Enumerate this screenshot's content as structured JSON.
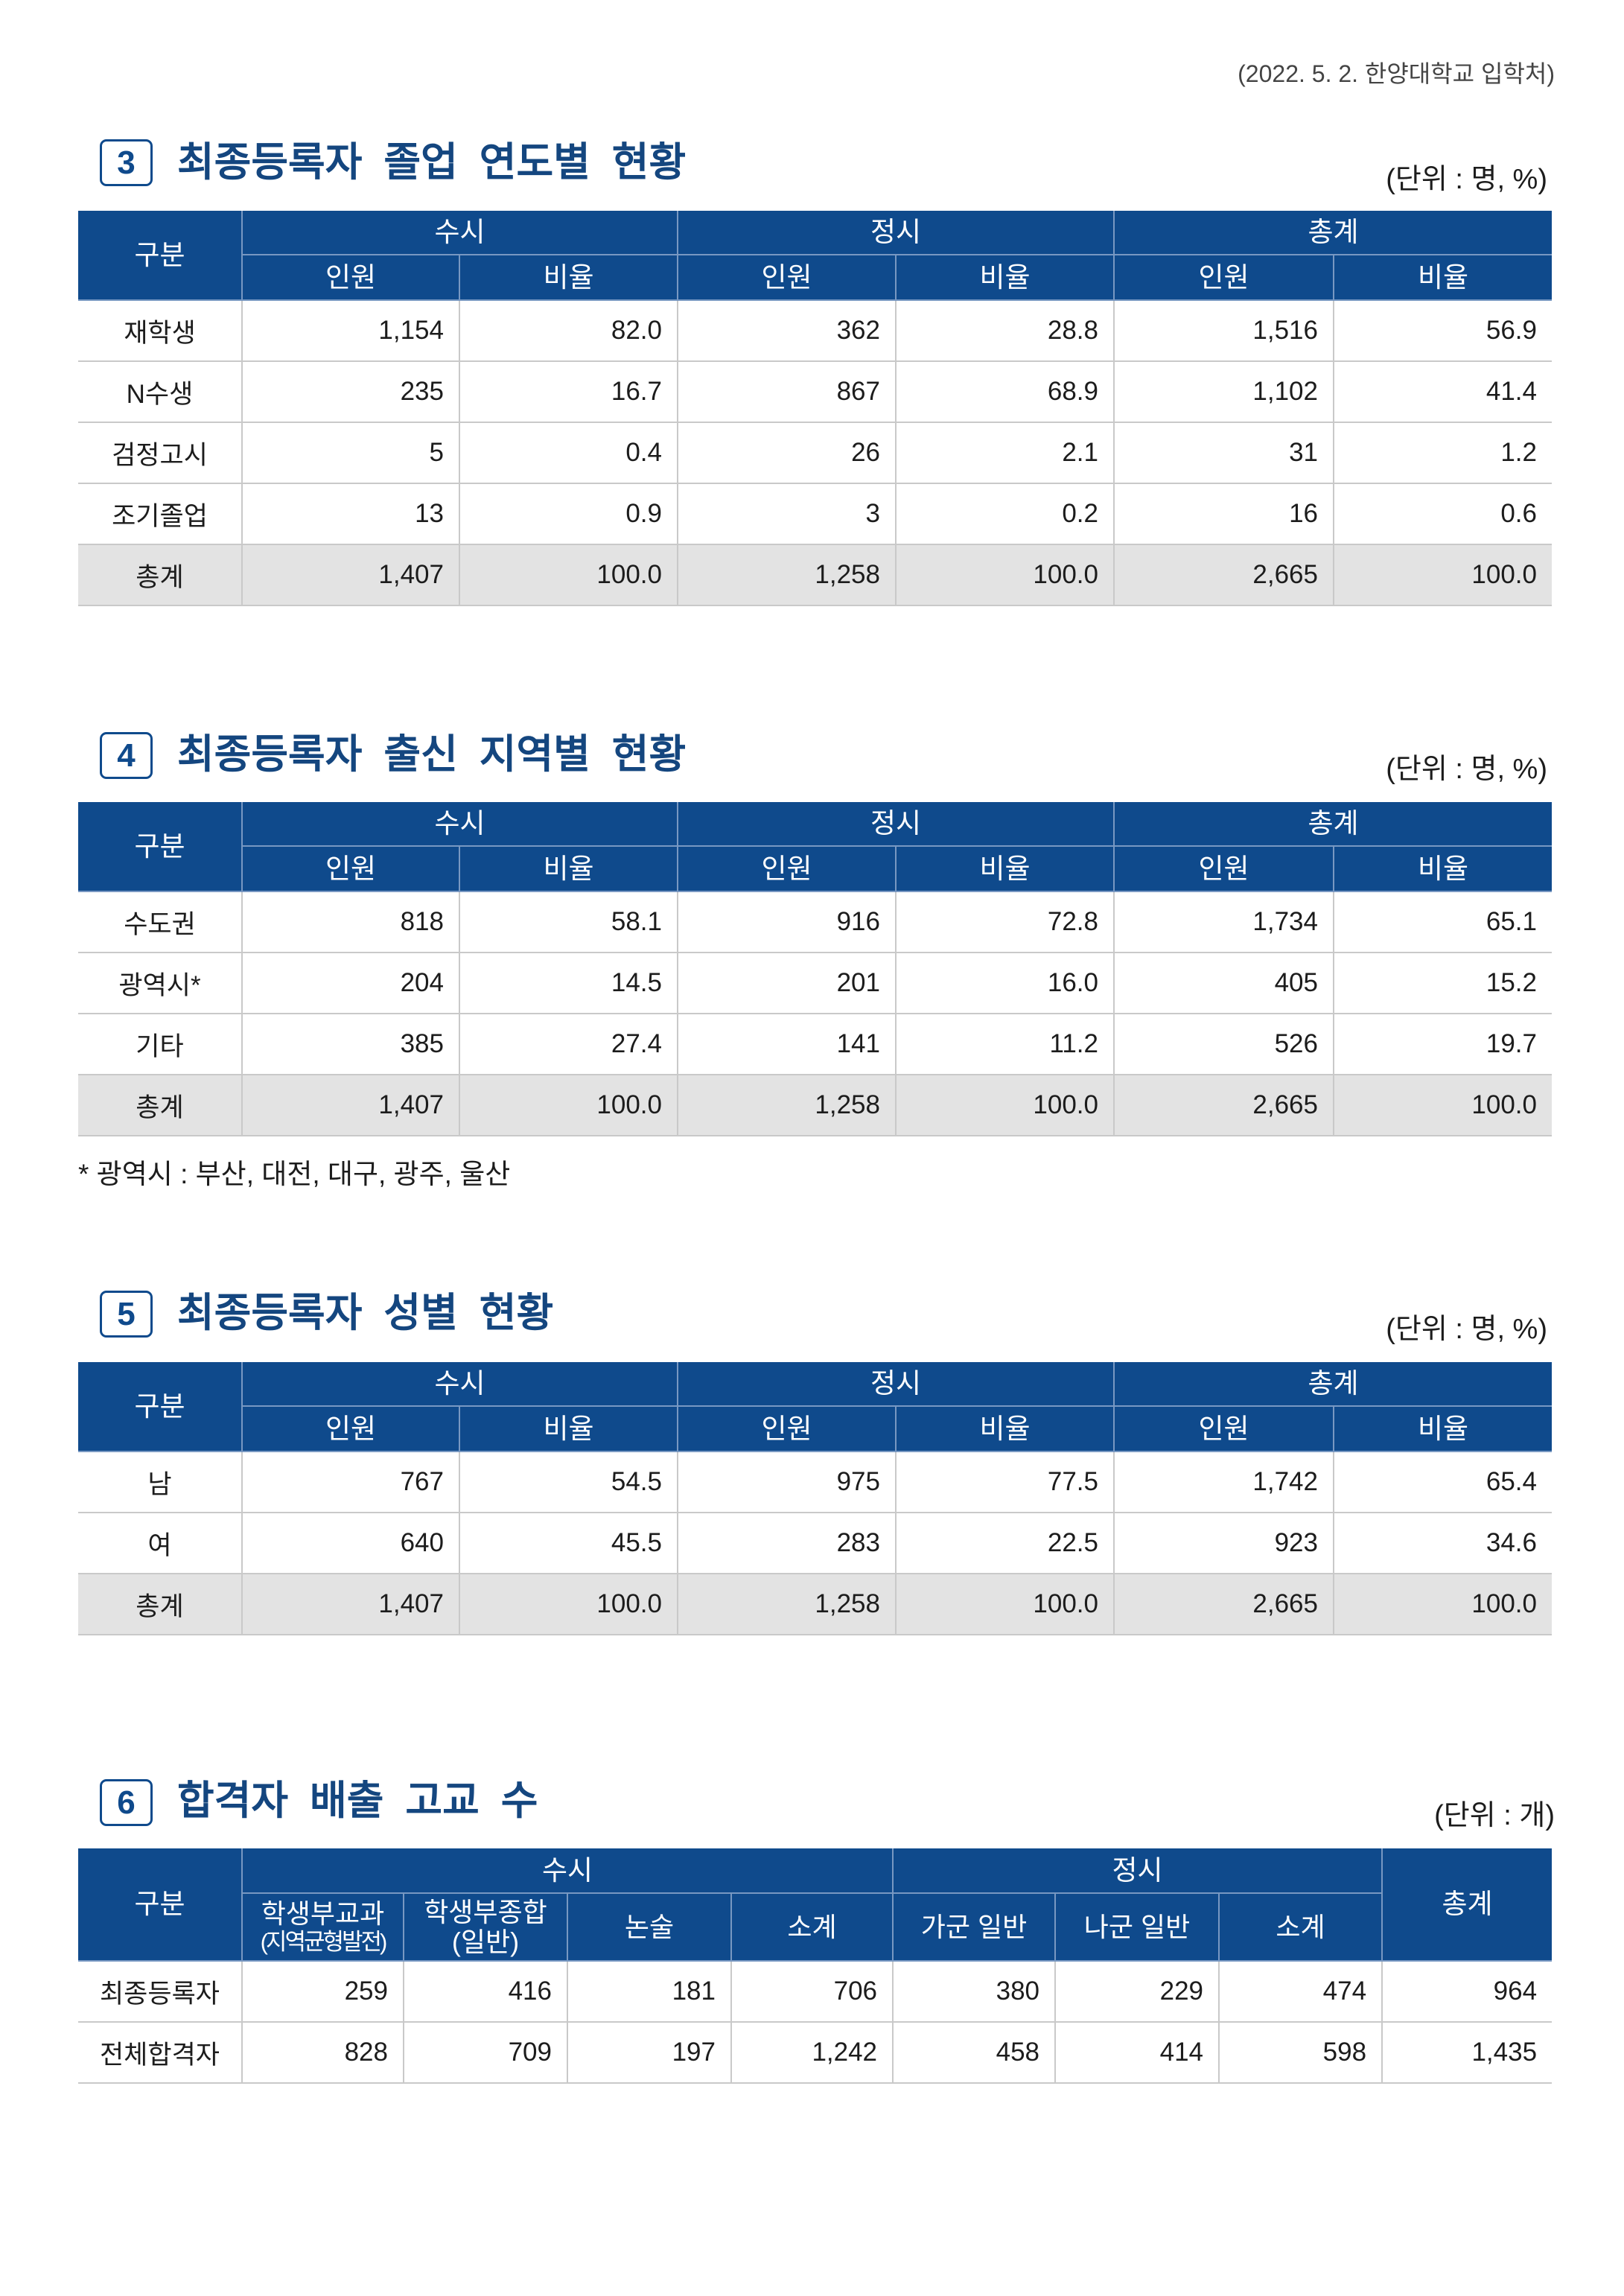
{
  "colors": {
    "header_blue": "#0f4a8c",
    "title_blue": "#14467f",
    "total_row_gray": "#e3e3e3"
  },
  "source_note": "(2022. 5. 2. 한양대학교 입학처)",
  "sections": [
    {
      "number": "3",
      "title": "최종등록자 졸업 연도별 현황",
      "unit": "(단위 : 명, %)",
      "table": {
        "header": {
          "category": "구분",
          "groups": [
            "수시",
            "정시",
            "총계"
          ],
          "subcolumns": [
            "인원",
            "비율",
            "인원",
            "비율",
            "인원",
            "비율"
          ]
        },
        "rows": [
          {
            "label": "재학생",
            "values": [
              "1,154",
              "82.0",
              "362",
              "28.8",
              "1,516",
              "56.9"
            ]
          },
          {
            "label": "N수생",
            "values": [
              "235",
              "16.7",
              "867",
              "68.9",
              "1,102",
              "41.4"
            ]
          },
          {
            "label": "검정고시",
            "values": [
              "5",
              "0.4",
              "26",
              "2.1",
              "31",
              "1.2"
            ]
          },
          {
            "label": "조기졸업",
            "values": [
              "13",
              "0.9",
              "3",
              "0.2",
              "16",
              "0.6"
            ]
          }
        ],
        "total": {
          "label": "총계",
          "values": [
            "1,407",
            "100.0",
            "1,258",
            "100.0",
            "2,665",
            "100.0"
          ]
        }
      }
    },
    {
      "number": "4",
      "title": "최종등록자 출신 지역별 현황",
      "unit": "(단위 : 명, %)",
      "table": {
        "header": {
          "category": "구분",
          "groups": [
            "수시",
            "정시",
            "총계"
          ],
          "subcolumns": [
            "인원",
            "비율",
            "인원",
            "비율",
            "인원",
            "비율"
          ]
        },
        "rows": [
          {
            "label": "수도권",
            "values": [
              "818",
              "58.1",
              "916",
              "72.8",
              "1,734",
              "65.1"
            ]
          },
          {
            "label": "광역시*",
            "values": [
              "204",
              "14.5",
              "201",
              "16.0",
              "405",
              "15.2"
            ]
          },
          {
            "label": "기타",
            "values": [
              "385",
              "27.4",
              "141",
              "11.2",
              "526",
              "19.7"
            ]
          }
        ],
        "total": {
          "label": "총계",
          "values": [
            "1,407",
            "100.0",
            "1,258",
            "100.0",
            "2,665",
            "100.0"
          ]
        }
      },
      "footnote": "* 광역시 : 부산, 대전, 대구, 광주, 울산"
    },
    {
      "number": "5",
      "title": "최종등록자 성별 현황",
      "unit": "(단위 : 명, %)",
      "table": {
        "header": {
          "category": "구분",
          "groups": [
            "수시",
            "정시",
            "총계"
          ],
          "subcolumns": [
            "인원",
            "비율",
            "인원",
            "비율",
            "인원",
            "비율"
          ]
        },
        "rows": [
          {
            "label": "남",
            "values": [
              "767",
              "54.5",
              "975",
              "77.5",
              "1,742",
              "65.4"
            ]
          },
          {
            "label": "여",
            "values": [
              "640",
              "45.5",
              "283",
              "22.5",
              "923",
              "34.6"
            ]
          }
        ],
        "total": {
          "label": "총계",
          "values": [
            "1,407",
            "100.0",
            "1,258",
            "100.0",
            "2,665",
            "100.0"
          ]
        }
      }
    },
    {
      "number": "6",
      "title": "합격자 배출 고교 수",
      "unit": "(단위 : 개)",
      "table": {
        "header": {
          "category": "구분",
          "groups": [
            "수시",
            "정시"
          ],
          "total_label": "총계",
          "subcolumns": [
            {
              "line1": "학생부교과",
              "line2": "(지역균형발전)"
            },
            {
              "line1": "학생부종합",
              "line2": "(일반)"
            },
            {
              "line1": "논술"
            },
            {
              "line1": "소계"
            },
            {
              "line1": "가군 일반"
            },
            {
              "line1": "나군 일반"
            },
            {
              "line1": "소계"
            }
          ]
        },
        "rows": [
          {
            "label": "최종등록자",
            "values": [
              "259",
              "416",
              "181",
              "706",
              "380",
              "229",
              "474",
              "964"
            ]
          },
          {
            "label": "전체합격자",
            "values": [
              "828",
              "709",
              "197",
              "1,242",
              "458",
              "414",
              "598",
              "1,435"
            ]
          }
        ]
      }
    }
  ]
}
